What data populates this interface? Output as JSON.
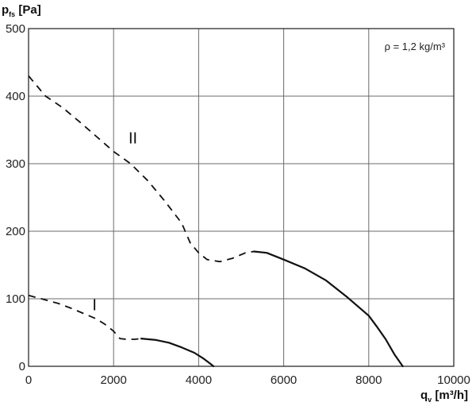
{
  "chart_data": {
    "type": "line",
    "ylabel": {
      "main": "p",
      "sub": "fs",
      "unit": " [Pa]"
    },
    "xlabel": {
      "main": "q",
      "sub": "v",
      "unit": " [m³/h]"
    },
    "xlim": [
      0,
      10000
    ],
    "ylim": [
      0,
      500
    ],
    "x_ticks": [
      0,
      2000,
      4000,
      6000,
      8000,
      10000
    ],
    "y_ticks": [
      0,
      100,
      200,
      300,
      400,
      500
    ],
    "x_tick_labels": [
      "0",
      "2000",
      "4000",
      "6000",
      "8000",
      "10000"
    ],
    "y_tick_labels": [
      "0",
      "100",
      "200",
      "300",
      "400",
      "500"
    ],
    "grid": true,
    "annotation": "ρ = 1,2 kg/m³",
    "series": [
      {
        "name": "I",
        "label_pos": [
          1500,
          83
        ],
        "dashed": [
          [
            0,
            105
          ],
          [
            300,
            100
          ],
          [
            700,
            93
          ],
          [
            1000,
            86
          ],
          [
            1300,
            78
          ],
          [
            1600,
            70
          ],
          [
            1800,
            62
          ],
          [
            2000,
            52
          ],
          [
            2150,
            41
          ],
          [
            2300,
            40
          ],
          [
            2500,
            40
          ],
          [
            2650,
            41
          ]
        ],
        "solid": [
          [
            2650,
            41
          ],
          [
            3000,
            39
          ],
          [
            3300,
            35
          ],
          [
            3600,
            28
          ],
          [
            3900,
            20
          ],
          [
            4100,
            12
          ],
          [
            4250,
            5
          ],
          [
            4350,
            0
          ]
        ]
      },
      {
        "name": "II",
        "label_pos": [
          2350,
          330
        ],
        "dashed": [
          [
            0,
            430
          ],
          [
            400,
            400
          ],
          [
            800,
            383
          ],
          [
            1200,
            362
          ],
          [
            1600,
            340
          ],
          [
            2000,
            318
          ],
          [
            2400,
            300
          ],
          [
            2800,
            275
          ],
          [
            3200,
            245
          ],
          [
            3600,
            212
          ],
          [
            3800,
            183
          ],
          [
            4000,
            168
          ],
          [
            4200,
            158
          ],
          [
            4500,
            155
          ],
          [
            4800,
            160
          ],
          [
            5100,
            168
          ],
          [
            5300,
            170
          ]
        ],
        "solid": [
          [
            5300,
            170
          ],
          [
            5600,
            168
          ],
          [
            6000,
            158
          ],
          [
            6500,
            145
          ],
          [
            7000,
            127
          ],
          [
            7500,
            102
          ],
          [
            8000,
            75
          ],
          [
            8200,
            58
          ],
          [
            8400,
            40
          ],
          [
            8600,
            18
          ],
          [
            8800,
            0
          ]
        ]
      }
    ]
  }
}
